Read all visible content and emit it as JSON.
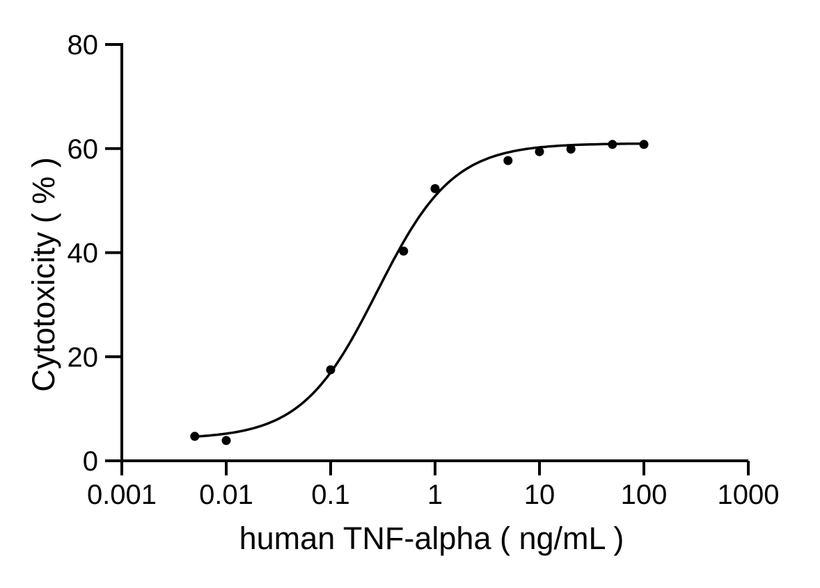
{
  "chart_data": {
    "type": "scatter",
    "title": "",
    "xlabel": "human TNF-alpha ( ng/mL )",
    "ylabel": "Cytotoxicity ( % )",
    "x_scale": "log",
    "x_ticks": [
      0.001,
      0.01,
      0.1,
      1,
      10,
      100,
      1000
    ],
    "x_tick_labels": [
      "0.001",
      "0.01",
      "0.1",
      "1",
      "10",
      "100",
      "1000"
    ],
    "y_ticks": [
      0,
      20,
      40,
      60,
      80
    ],
    "y_tick_labels": [
      "0",
      "20",
      "40",
      "60",
      "80"
    ],
    "xlim_log10": [
      -3,
      3
    ],
    "ylim": [
      0,
      80
    ],
    "grid": false,
    "legend": "none",
    "points": {
      "x": [
        0.005,
        0.01,
        0.1,
        0.5,
        1,
        5,
        10,
        20,
        50,
        100
      ],
      "y": [
        4.7,
        3.9,
        17.5,
        40.3,
        52.3,
        57.7,
        59.4,
        59.9,
        60.8,
        60.8
      ]
    },
    "fit_curve": {
      "model": "4PL",
      "bottom": 4.2,
      "top": 61.0,
      "ec50": 0.28,
      "hill": 1.2,
      "x_range": [
        0.005,
        100
      ]
    },
    "colors": {
      "foreground": "#000000",
      "background": "#ffffff"
    }
  }
}
